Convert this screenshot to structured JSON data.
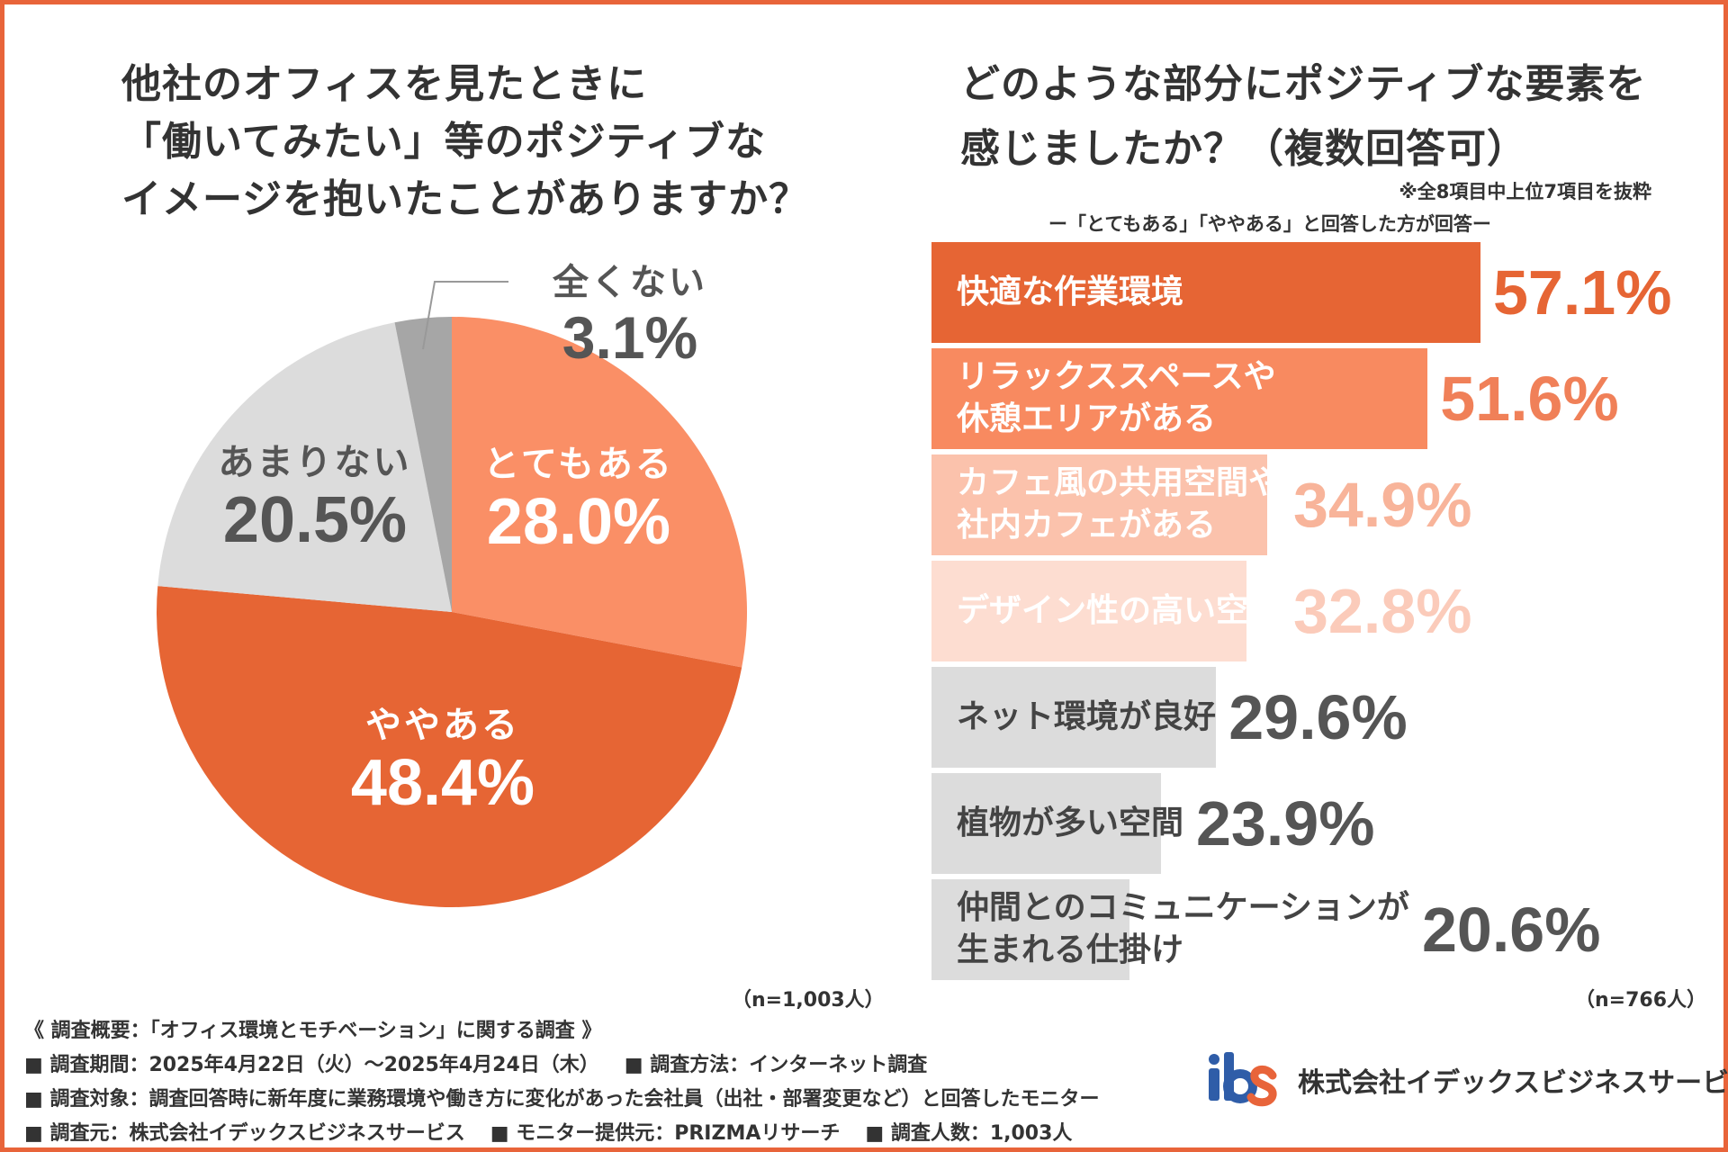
{
  "left": {
    "title_lines": [
      "他社のオフィスを見たときに",
      "「働いてみたい」等のポジティブな",
      "イメージを抱いたことがありますか？"
    ],
    "n_label": "（n=1,003人）"
  },
  "right": {
    "title_lines": [
      "どのような部分にポジティブな要素を",
      "感じましたか？（複数回答可）"
    ],
    "note": "※全8項目中上位7項目を抜粋",
    "subnote": "ー「とてもある」「ややある」と回答した方が回答ー",
    "n_label": "（n=766人）"
  },
  "chart_data": [
    {
      "type": "pie",
      "title": "他社のオフィスを見たときに「働いてみたい」等のポジティブなイメージを抱いたことがありますか？",
      "start": "12 o'clock, clockwise",
      "slices": [
        {
          "label": "とてもある",
          "value": 28.0,
          "display": "28.0%",
          "color": "#fa8f66",
          "text_color": "#ffffff"
        },
        {
          "label": "ややある",
          "value": 48.4,
          "display": "48.4%",
          "color": "#e66534",
          "text_color": "#ffffff"
        },
        {
          "label": "あまりない",
          "value": 20.5,
          "display": "20.5%",
          "color": "#dcdcdc",
          "text_color": "#555555"
        },
        {
          "label": "全くない",
          "value": 3.1,
          "display": "3.1%",
          "color": "#a6a6a6",
          "text_color": "#555555"
        }
      ]
    },
    {
      "type": "bar",
      "orientation": "horizontal",
      "title": "どのような部分にポジティブな要素を感じましたか？（複数回答可）",
      "xlim": [
        0,
        100
      ],
      "bars": [
        {
          "label_lines": [
            "快適な作業環境"
          ],
          "value": 57.1,
          "display": "57.1%",
          "color": "#e66534",
          "label_color": "#ffffff",
          "value_color": "#e66534"
        },
        {
          "label_lines": [
            "リラックススペースや",
            "休憩エリアがある"
          ],
          "value": 51.6,
          "display": "51.6%",
          "color": "#f88a60",
          "label_color": "#ffffff",
          "value_color": "#f08058"
        },
        {
          "label_lines": [
            "カフェ風の共用空間や",
            "社内カフェがある"
          ],
          "value": 34.9,
          "display": "34.9%",
          "color": "#fbc2ac",
          "label_color": "#ffffff",
          "value_color": "#f8b49a"
        },
        {
          "label_lines": [
            "デザイン性の高い空間"
          ],
          "value": 32.8,
          "display": "32.8%",
          "color": "#fdddd1",
          "label_color": "#ffffff",
          "value_color": "#fbcbba"
        },
        {
          "label_lines": [
            "ネット環境が良好"
          ],
          "value": 29.6,
          "display": "29.6%",
          "color": "#dcdcdc",
          "label_color": "#444444",
          "value_color": "#555555"
        },
        {
          "label_lines": [
            "植物が多い空間"
          ],
          "value": 23.9,
          "display": "23.9%",
          "color": "#dcdcdc",
          "label_color": "#444444",
          "value_color": "#555555"
        },
        {
          "label_lines": [
            "仲間とのコミュニケーションが",
            "生まれる仕掛け"
          ],
          "value": 20.6,
          "display": "20.6%",
          "color": "#dcdcdc",
          "label_color": "#444444",
          "value_color": "#555555"
        }
      ]
    }
  ],
  "footer": {
    "line1": "《 調査概要：「オフィス環境とモチベーション」に関する調査 》",
    "line2": [
      "■ 調査期間：2025年4月22日（火）〜2025年4月24日（木）",
      "■ 調査方法：インターネット調査"
    ],
    "line3": "■ 調査対象：調査回答時に新年度に業務環境や働き方に変化があった会社員（出社・部署変更など）と回答したモニター",
    "line4": [
      "■ 調査元：株式会社イデックスビジネスサービス",
      "■ モニター提供元：PRIZMAリサーチ",
      "■ 調査人数：1,003人"
    ]
  },
  "logo": {
    "mark": "ibs",
    "company": "株式会社イデックスビジネスサービス",
    "colors": {
      "i": "#2f5da8",
      "b": "#2f5da8",
      "s": "#e8643a"
    }
  }
}
